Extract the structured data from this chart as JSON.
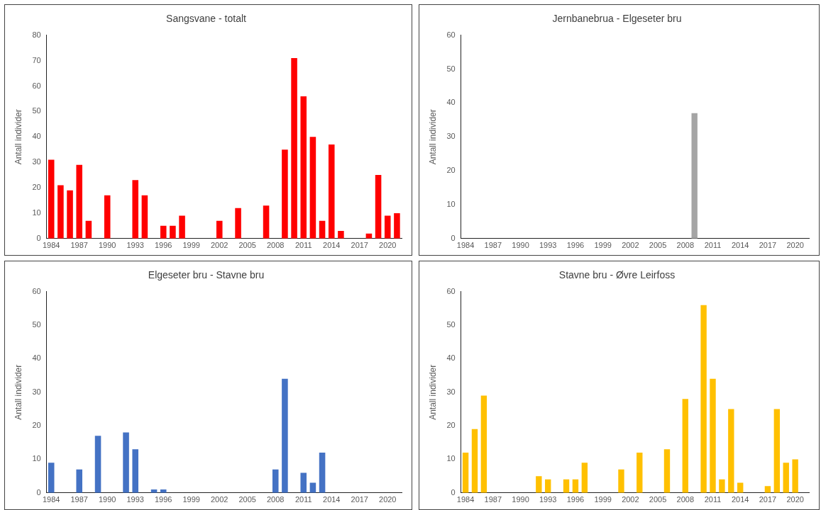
{
  "chart_data": [
    {
      "type": "bar",
      "title": "Sangsvane - totalt",
      "ylabel": "Antall individer",
      "categories": [
        "1984",
        null,
        null,
        "1987",
        null,
        null,
        "1990",
        null,
        null,
        "1993",
        null,
        null,
        "1996",
        null,
        null,
        "1999",
        null,
        null,
        "2002",
        null,
        null,
        "2005",
        null,
        null,
        "2008",
        null,
        null,
        "2011",
        null,
        null,
        "2014",
        null,
        null,
        "2017",
        null,
        null,
        "2020",
        null
      ],
      "color": "#ff0000",
      "values": [
        31,
        21,
        19,
        29,
        7,
        0,
        17,
        0,
        0,
        23,
        17,
        0,
        5,
        5,
        9,
        0,
        0,
        0,
        7,
        0,
        12,
        0,
        0,
        13,
        0,
        35,
        71,
        56,
        40,
        7,
        37,
        3,
        0,
        0,
        2,
        25,
        9,
        10
      ],
      "ylim": [
        0,
        80
      ],
      "yticks": [
        0,
        10,
        20,
        30,
        40,
        50,
        60,
        70,
        80
      ],
      "grid": false,
      "legend": false
    },
    {
      "type": "bar",
      "title": "Jernbanebrua - Elgeseter bru",
      "ylabel": "Antall individer",
      "categories": [
        "1984",
        null,
        null,
        "1987",
        null,
        null,
        "1990",
        null,
        null,
        "1993",
        null,
        null,
        "1996",
        null,
        null,
        "1999",
        null,
        null,
        "2002",
        null,
        null,
        "2005",
        null,
        null,
        "2008",
        null,
        null,
        "2011",
        null,
        null,
        "2014",
        null,
        null,
        "2017",
        null,
        null,
        "2020",
        null
      ],
      "color": "#a5a5a5",
      "values": [
        0,
        0,
        0,
        0,
        0,
        0,
        0,
        0,
        0,
        0,
        0,
        0,
        0,
        0,
        0,
        0,
        0,
        0,
        0,
        0,
        0,
        0,
        0,
        0,
        0,
        37,
        0,
        0,
        0,
        0,
        0,
        0,
        0,
        0,
        0,
        0,
        0,
        0
      ],
      "ylim": [
        0,
        60
      ],
      "yticks": [
        0,
        10,
        20,
        30,
        40,
        50,
        60
      ],
      "grid": false,
      "legend": false
    },
    {
      "type": "bar",
      "title": "Elgeseter bru - Stavne bru",
      "ylabel": "Antall individer",
      "categories": [
        "1984",
        null,
        null,
        "1987",
        null,
        null,
        "1990",
        null,
        null,
        "1993",
        null,
        null,
        "1996",
        null,
        null,
        "1999",
        null,
        null,
        "2002",
        null,
        null,
        "2005",
        null,
        null,
        "2008",
        null,
        null,
        "2011",
        null,
        null,
        "2014",
        null,
        null,
        "2017",
        null,
        null,
        "2020",
        null
      ],
      "color": "#4472c4",
      "values": [
        9,
        0,
        0,
        7,
        0,
        17,
        0,
        0,
        18,
        13,
        0,
        1,
        1,
        0,
        0,
        0,
        0,
        0,
        0,
        0,
        0,
        0,
        0,
        0,
        7,
        34,
        0,
        6,
        3,
        12,
        0,
        0,
        0,
        0,
        0,
        0,
        0,
        0
      ],
      "ylim": [
        0,
        60
      ],
      "yticks": [
        0,
        10,
        20,
        30,
        40,
        50,
        60
      ],
      "grid": false,
      "legend": false
    },
    {
      "type": "bar",
      "title": "Stavne bru - Øvre Leirfoss",
      "ylabel": "Antall individer",
      "categories": [
        "1984",
        null,
        null,
        "1987",
        null,
        null,
        "1990",
        null,
        null,
        "1993",
        null,
        null,
        "1996",
        null,
        null,
        "1999",
        null,
        null,
        "2002",
        null,
        null,
        "2005",
        null,
        null,
        "2008",
        null,
        null,
        "2011",
        null,
        null,
        "2014",
        null,
        null,
        "2017",
        null,
        null,
        "2020",
        null
      ],
      "color": "#ffc000",
      "values": [
        12,
        19,
        29,
        0,
        0,
        0,
        0,
        0,
        5,
        4,
        0,
        4,
        4,
        9,
        0,
        0,
        0,
        7,
        0,
        12,
        0,
        0,
        13,
        0,
        28,
        0,
        56,
        34,
        4,
        25,
        3,
        0,
        0,
        2,
        25,
        9,
        10,
        0
      ],
      "ylim": [
        0,
        60
      ],
      "yticks": [
        0,
        10,
        20,
        30,
        40,
        50,
        60
      ],
      "grid": false,
      "legend": false
    }
  ]
}
